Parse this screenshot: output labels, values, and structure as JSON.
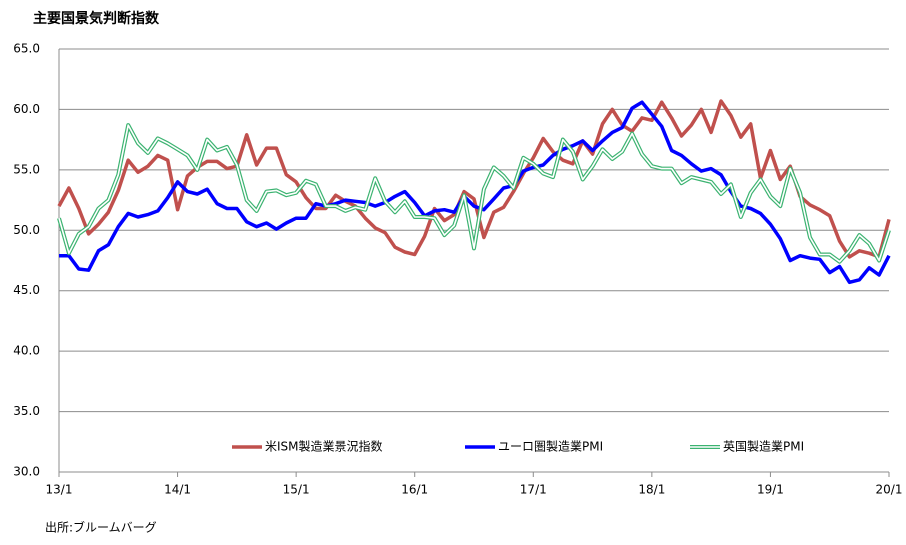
{
  "chart_data": {
    "type": "line",
    "title": "主要国景気判断指数",
    "source": "出所:ブルームバーグ",
    "categories": [
      "13/1",
      null,
      null,
      null,
      null,
      null,
      null,
      null,
      null,
      null,
      null,
      null,
      "14/1",
      null,
      null,
      null,
      null,
      null,
      null,
      null,
      null,
      null,
      null,
      null,
      "15/1",
      null,
      null,
      null,
      null,
      null,
      null,
      null,
      null,
      null,
      null,
      null,
      "16/1",
      null,
      null,
      null,
      null,
      null,
      null,
      null,
      null,
      null,
      null,
      null,
      "17/1",
      null,
      null,
      null,
      null,
      null,
      null,
      null,
      null,
      null,
      null,
      null,
      "18/1",
      null,
      null,
      null,
      null,
      null,
      null,
      null,
      null,
      null,
      null,
      null,
      "19/1",
      null,
      null,
      null,
      null,
      null,
      null,
      null,
      null,
      null,
      null,
      null,
      "20/1"
    ],
    "series": [
      {
        "name": "米ISM製造業景況指数",
        "color": "#c0504d",
        "style": "solid",
        "values": [
          52.0,
          53.5,
          51.8,
          49.7,
          50.5,
          51.5,
          53.3,
          55.8,
          54.8,
          55.3,
          56.2,
          55.8,
          51.7,
          54.5,
          55.2,
          55.7,
          55.7,
          55.1,
          55.3,
          57.9,
          55.4,
          56.8,
          56.8,
          54.6,
          54.0,
          52.7,
          51.8,
          51.8,
          52.9,
          52.4,
          52.0,
          51.0,
          50.2,
          49.8,
          48.6,
          48.2,
          48.0,
          49.5,
          51.8,
          50.8,
          51.3,
          53.2,
          52.6,
          49.4,
          51.5,
          51.9,
          53.2,
          54.7,
          56.0,
          57.6,
          56.5,
          55.8,
          55.5,
          57.4,
          56.3,
          58.8,
          60.0,
          58.7,
          58.2,
          59.3,
          59.1,
          60.6,
          59.3,
          57.8,
          58.7,
          60.0,
          58.1,
          60.7,
          59.5,
          57.7,
          58.8,
          54.3,
          56.6,
          54.2,
          55.3,
          52.8,
          52.1,
          51.7,
          51.2,
          49.1,
          47.8,
          48.3,
          48.1,
          47.8,
          50.9
        ]
      },
      {
        "name": "ユーロ圏製造業PMI",
        "color": "#0000ff",
        "style": "solid",
        "values": [
          47.9,
          47.9,
          46.8,
          46.7,
          48.3,
          48.8,
          50.3,
          51.4,
          51.1,
          51.3,
          51.6,
          52.7,
          54.0,
          53.2,
          53.0,
          53.4,
          52.2,
          51.8,
          51.8,
          50.7,
          50.3,
          50.6,
          50.1,
          50.6,
          51.0,
          51.0,
          52.2,
          52.0,
          52.2,
          52.5,
          52.4,
          52.3,
          52.0,
          52.3,
          52.8,
          53.2,
          52.3,
          51.2,
          51.6,
          51.7,
          51.5,
          52.8,
          52.0,
          51.7,
          52.6,
          53.5,
          53.7,
          54.9,
          55.2,
          55.4,
          56.2,
          56.7,
          57.0,
          57.4,
          56.6,
          57.4,
          58.1,
          58.5,
          60.1,
          60.6,
          59.6,
          58.6,
          56.6,
          56.2,
          55.5,
          54.9,
          55.1,
          54.6,
          53.2,
          52.0,
          51.8,
          51.4,
          50.5,
          49.3,
          47.5,
          47.9,
          47.7,
          47.6,
          46.5,
          47.0,
          45.7,
          45.9,
          46.9,
          46.3,
          47.9
        ]
      },
      {
        "name": "英国製造業PMI",
        "color": "#3cb371",
        "style": "double",
        "values": [
          51.0,
          48.1,
          49.7,
          50.3,
          51.8,
          52.5,
          54.6,
          58.7,
          57.2,
          56.4,
          57.6,
          57.2,
          56.7,
          56.2,
          55.0,
          57.5,
          56.6,
          56.9,
          55.4,
          52.5,
          51.6,
          53.2,
          53.3,
          52.9,
          53.1,
          54.1,
          53.8,
          52.0,
          52.0,
          51.6,
          51.9,
          51.7,
          54.3,
          52.4,
          51.5,
          52.4,
          51.1,
          51.1,
          51.0,
          49.6,
          50.4,
          52.9,
          48.5,
          53.4,
          55.2,
          54.5,
          53.5,
          56.0,
          55.5,
          54.7,
          54.4,
          57.5,
          56.5,
          54.2,
          55.3,
          56.7,
          55.9,
          56.5,
          58.0,
          56.3,
          55.3,
          55.1,
          55.1,
          53.9,
          54.4,
          54.2,
          54.0,
          53.0,
          53.8,
          51.1,
          53.1,
          54.2,
          52.8,
          52.0,
          55.1,
          53.1,
          49.4,
          48.0,
          48.0,
          47.4,
          48.3,
          49.6,
          48.9,
          47.5,
          50.0
        ]
      }
    ],
    "ylim": [
      30,
      65
    ],
    "yticks": [
      {
        "value": 30,
        "label": "30.0"
      },
      {
        "value": 35,
        "label": "35.0"
      },
      {
        "value": 40,
        "label": "40.0"
      },
      {
        "value": 45,
        "label": "45.0"
      },
      {
        "value": 50,
        "label": "50.0"
      },
      {
        "value": 55,
        "label": "55.0"
      },
      {
        "value": 60,
        "label": "60.0"
      },
      {
        "value": 65,
        "label": "65.0"
      }
    ],
    "grid": true,
    "legend": "bottom"
  }
}
